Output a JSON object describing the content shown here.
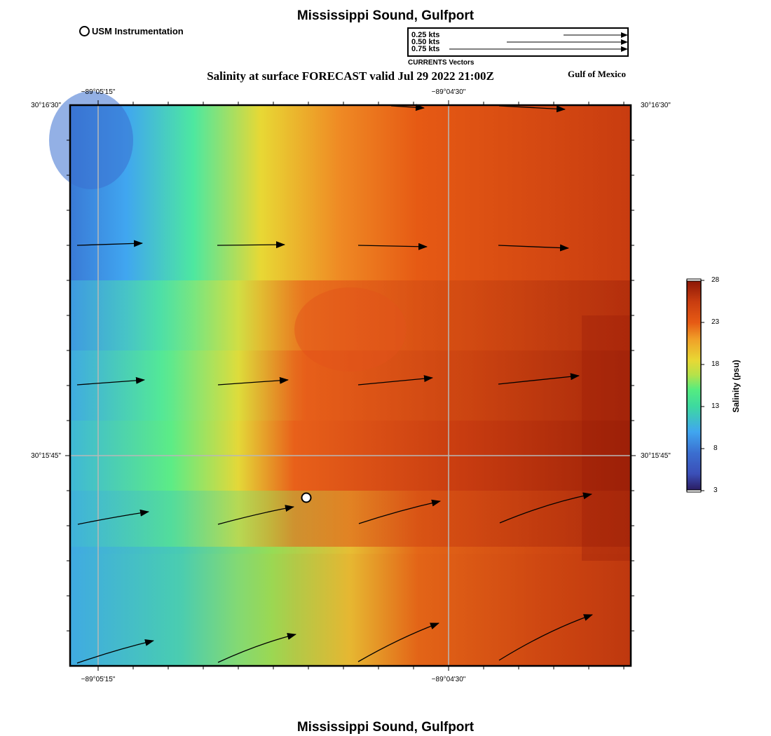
{
  "header": {
    "title": "Mississippi Sound, Gulfport",
    "legend_marker_label": "USM Instrumentation",
    "subtitle": "Salinity at surface FORECAST valid Jul 29 2022 21:00Z",
    "region": "Gulf of Mexico"
  },
  "vector_legend": {
    "labels": [
      "0.25 kts",
      "0.50 kts",
      "0.75 kts"
    ],
    "caption": "CURRENTS Vectors"
  },
  "axes": {
    "lon_ticks": [
      {
        "label": "−89°05'15\""
      },
      {
        "label": "−89°04'30\""
      }
    ],
    "lat_ticks": [
      {
        "label": "30°16'30\""
      },
      {
        "label": "30°15'45\""
      }
    ]
  },
  "colorbar": {
    "label": "Salinity (psu)",
    "ticks": [
      "28",
      "23",
      "18",
      "13",
      "8",
      "3"
    ],
    "range": [
      3,
      28
    ],
    "colors": [
      "#2a1a5e",
      "#3b6fd0",
      "#40a6f0",
      "#3dd9a0",
      "#55ec80",
      "#b5e24a",
      "#e8d834",
      "#f0a028",
      "#e65a14",
      "#c83c10",
      "#9a1c08"
    ]
  },
  "map": {
    "station": {
      "name": "USM Instrumentation"
    },
    "vectors_note": "surface current arrows pointing east/north-east"
  },
  "footer": {
    "title": "Mississippi Sound, Gulfport"
  }
}
